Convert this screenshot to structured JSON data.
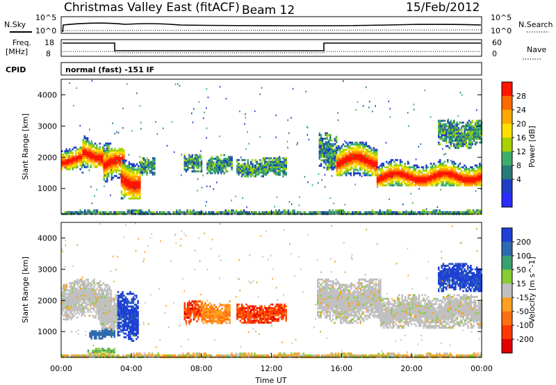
{
  "header": {
    "radar": "Christmas Valley East (fitACF)",
    "beam": "Beam 12",
    "date": "15/Feb/2012"
  },
  "top_panels": {
    "nsky_label": "N.Sky",
    "nsearch_label": "N.Search",
    "nsky_ticks": [
      "10^5",
      "10^0"
    ],
    "freq_label": "Freq.",
    "freq_unit": "[MHz]",
    "freq_ticks": [
      "18",
      "8"
    ],
    "nave_label": "Nave",
    "nave_ticks": [
      "60",
      "0"
    ],
    "cpid_label": "CPID",
    "cpid_value": "normal (fast) -151 IF"
  },
  "power_colorbar": {
    "label": "Power [dB]",
    "ticks": [
      "28",
      "24",
      "20",
      "16",
      "12",
      "8",
      "4"
    ],
    "colors": [
      "#ff1400",
      "#ff6a00",
      "#ffaa00",
      "#ffe000",
      "#a8d200",
      "#3fae6a",
      "#2a7a7a",
      "#1f3fc6",
      "#2b2bff"
    ]
  },
  "velocity_colorbar": {
    "label": "Velocity [m s^-1]",
    "ticks": [
      "200",
      "100",
      "50",
      "15",
      "-15",
      "-50",
      "-100",
      "-200"
    ],
    "colors": [
      "#1f3fd6",
      "#2f6ab0",
      "#3aa070",
      "#88cc33",
      "#c0c0c0",
      "#ffa020",
      "#ff7010",
      "#ff3800",
      "#e00000"
    ]
  },
  "chart_data": [
    {
      "type": "heatmap",
      "name": "power",
      "ylabel": "Slant Range [km]",
      "ylim": [
        180,
        4500
      ],
      "yticks": [
        1000,
        2000,
        3000,
        4000
      ],
      "xlim": [
        0,
        24
      ],
      "xticks": [
        "00:00",
        "04:00",
        "08:00",
        "12:00",
        "16:00",
        "20:00",
        "00:00"
      ],
      "patches": [
        {
          "t0": 0.0,
          "t1": 1.2,
          "r0": 1600,
          "r1": 2400,
          "center": 1950,
          "hot": true
        },
        {
          "t0": 1.2,
          "t1": 2.8,
          "r0": 1700,
          "r1": 2700,
          "center": 2100,
          "hot": true
        },
        {
          "t0": 2.4,
          "t1": 3.6,
          "r0": 1200,
          "r1": 2300,
          "center": 1800,
          "hot": true
        },
        {
          "t0": 3.4,
          "t1": 4.5,
          "r0": 700,
          "r1": 2100,
          "center": 1300,
          "hot": true
        },
        {
          "t0": 4.5,
          "t1": 5.3,
          "r0": 1400,
          "r1": 2000,
          "center": 1700,
          "hot": false
        },
        {
          "t0": 7.0,
          "t1": 8.0,
          "r0": 1500,
          "r1": 2100,
          "center": 1800,
          "hot": false
        },
        {
          "t0": 8.3,
          "t1": 9.7,
          "r0": 1500,
          "r1": 2100,
          "center": 1800,
          "hot": false
        },
        {
          "t0": 10.0,
          "t1": 12.8,
          "r0": 1400,
          "r1": 2000,
          "center": 1700,
          "hot": false
        },
        {
          "t0": 14.7,
          "t1": 15.7,
          "r0": 1600,
          "r1": 2800,
          "center": 2200,
          "hot": false
        },
        {
          "t0": 15.7,
          "t1": 18.0,
          "r0": 1400,
          "r1": 2500,
          "center": 1900,
          "hot": true
        },
        {
          "t0": 18.0,
          "t1": 24.0,
          "r0": 1100,
          "r1": 2000,
          "center": 1400,
          "hot": true
        },
        {
          "t0": 21.5,
          "t1": 24.0,
          "r0": 2300,
          "r1": 3200,
          "center": 2800,
          "hot": false
        },
        {
          "t0": 0.0,
          "t1": 24.0,
          "r0": 180,
          "r1": 330,
          "center": 250,
          "hot": false
        }
      ]
    },
    {
      "type": "heatmap",
      "name": "velocity",
      "ylabel": "Slant Range [km]",
      "xlabel": "Time UT",
      "ylim": [
        180,
        4500
      ],
      "yticks": [
        1000,
        2000,
        3000,
        4000
      ],
      "xlim": [
        0,
        24
      ],
      "xticks": [
        "00:00",
        "04:00",
        "08:00",
        "12:00",
        "16:00",
        "20:00",
        "00:00"
      ],
      "patches": [
        {
          "t0": 0.0,
          "t1": 2.8,
          "r0": 1400,
          "r1": 2700,
          "v": 0
        },
        {
          "t0": 2.2,
          "t1": 3.3,
          "r0": 1000,
          "r1": 2200,
          "v": 0
        },
        {
          "t0": 3.2,
          "t1": 4.4,
          "r0": 700,
          "r1": 2300,
          "v": 200
        },
        {
          "t0": 1.6,
          "t1": 3.0,
          "r0": 800,
          "r1": 1100,
          "v": 100
        },
        {
          "t0": 7.0,
          "t1": 8.0,
          "r0": 1300,
          "r1": 2000,
          "v": -200
        },
        {
          "t0": 8.0,
          "t1": 9.6,
          "r0": 1300,
          "r1": 2000,
          "v": -100
        },
        {
          "t0": 10.0,
          "t1": 12.8,
          "r0": 1300,
          "r1": 1900,
          "v": -150
        },
        {
          "t0": 14.6,
          "t1": 18.2,
          "r0": 1300,
          "r1": 2700,
          "v": 0
        },
        {
          "t0": 18.2,
          "t1": 24.0,
          "r0": 1100,
          "r1": 2200,
          "v": 0
        },
        {
          "t0": 21.5,
          "t1": 24.0,
          "r0": 2300,
          "r1": 3200,
          "v": 200
        },
        {
          "t0": 1.5,
          "t1": 3.0,
          "r0": 330,
          "r1": 480,
          "v": 50
        },
        {
          "t0": 0.0,
          "t1": 24.0,
          "r0": 180,
          "r1": 330,
          "v": -50
        }
      ]
    }
  ]
}
